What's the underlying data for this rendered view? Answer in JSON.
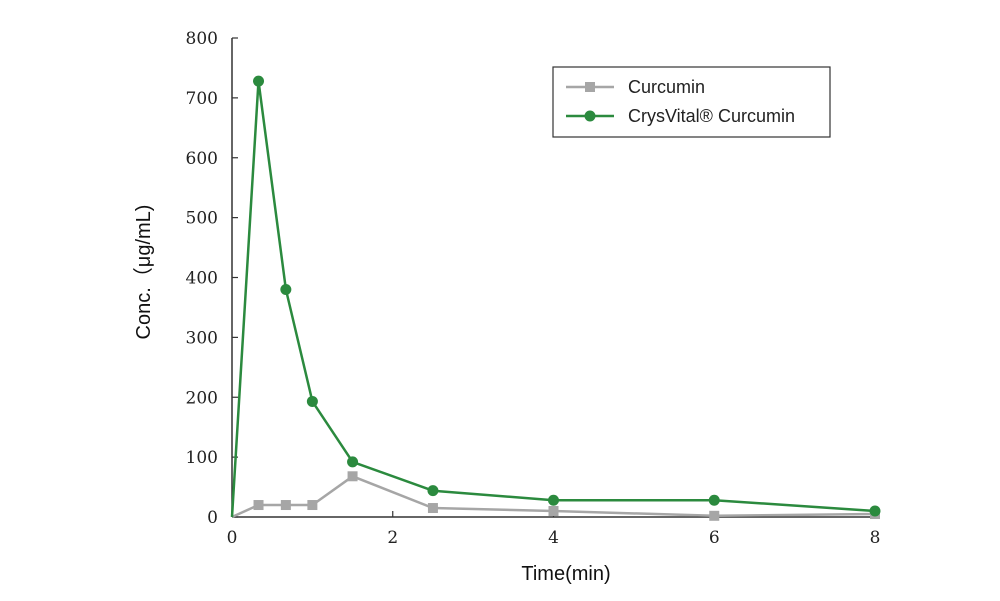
{
  "chart_data": {
    "type": "line",
    "xlabel": "Time(min)",
    "ylabel": "Conc.（μg/mL)",
    "xlim": [
      0,
      8
    ],
    "ylim": [
      0,
      800
    ],
    "xticks": [
      0,
      2,
      4,
      6,
      8
    ],
    "yticks": [
      0,
      100,
      200,
      300,
      400,
      500,
      600,
      700,
      800
    ],
    "grid": false,
    "legend_position": "top-right",
    "series": [
      {
        "name": "Curcumin",
        "color": "#a6a6a6",
        "marker": "square",
        "x": [
          0,
          0.33,
          0.67,
          1,
          1.5,
          2.5,
          4,
          6,
          8
        ],
        "y": [
          0,
          20,
          20,
          20,
          68,
          15,
          10,
          2,
          5
        ]
      },
      {
        "name": "CrysVital® Curcumin",
        "color": "#2b8a3e",
        "marker": "circle",
        "x": [
          0,
          0.33,
          0.67,
          1,
          1.5,
          2.5,
          4,
          6,
          8
        ],
        "y": [
          0,
          728,
          380,
          193,
          92,
          44,
          28,
          28,
          10
        ]
      }
    ]
  }
}
